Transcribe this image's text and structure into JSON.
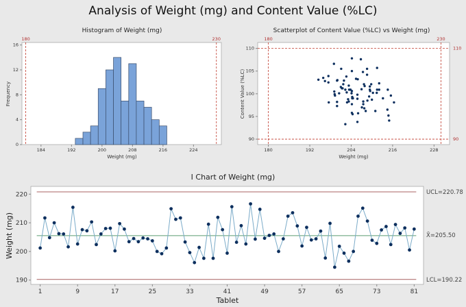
{
  "title": "Analysis of Weight (mg) and Content Value (%LC)",
  "colors": {
    "bar": "#7aa3d9",
    "bar_edge": "#3a4d6b",
    "point": "#0d2f5e",
    "line": "#79aac8",
    "center": "#5a9c72",
    "limit": "#a86060",
    "reference": "#c0392b"
  },
  "chart_data": [
    {
      "type": "bar",
      "title": "Histogram of Weight (mg)",
      "xlabel": "Weight (mg)",
      "ylabel": "Frequency",
      "bin_edges": [
        193,
        195,
        197,
        199,
        201,
        203,
        205,
        207,
        209,
        211,
        213,
        215,
        217
      ],
      "values": [
        1,
        2,
        3,
        9,
        12,
        14,
        7,
        13,
        7,
        6,
        4,
        3
      ],
      "xlim": [
        179,
        231.3
      ],
      "ylim": [
        0,
        16.4
      ],
      "xticks": [
        184,
        192,
        200,
        208,
        216,
        224
      ],
      "yticks": [
        0,
        4,
        8,
        12,
        16
      ],
      "reference_lines_x": [
        180,
        230
      ],
      "grid": false
    },
    {
      "type": "scatter",
      "title": "Scatterplot of Content Value (%LC) vs Weight (mg)",
      "xlabel": "Weight (mg)",
      "ylabel": "Content Value (%LC)",
      "xlim": [
        176.9,
        232.5
      ],
      "ylim": [
        88.8,
        111.3
      ],
      "xticks": [
        180,
        192,
        204,
        216,
        228
      ],
      "yticks": [
        90,
        95,
        100,
        105,
        110
      ],
      "reference_lines_x": [
        180,
        230
      ],
      "reference_lines_y": [
        90,
        110
      ],
      "grid": false,
      "points": [
        [
          194.5,
          103.1
        ],
        [
          195.9,
          103.5
        ],
        [
          196.4,
          102.8
        ],
        [
          197.4,
          102.5
        ],
        [
          197.4,
          103.9
        ],
        [
          197.5,
          98.1
        ],
        [
          199.0,
          106.6
        ],
        [
          199.1,
          100.5
        ],
        [
          199.2,
          99.9
        ],
        [
          199.3,
          99.6
        ],
        [
          199.9,
          102.9
        ],
        [
          200.0,
          103.0
        ],
        [
          199.9,
          98.2
        ],
        [
          199.9,
          97.3
        ],
        [
          200.5,
          100.1
        ],
        [
          201.1,
          105.5
        ],
        [
          201.0,
          101.5
        ],
        [
          201.3,
          101.2
        ],
        [
          201.5,
          101.2
        ],
        [
          201.7,
          102.1
        ],
        [
          201.9,
          102.9
        ],
        [
          202.3,
          100.9
        ],
        [
          202.6,
          103.8
        ],
        [
          202.7,
          100.3
        ],
        [
          202.8,
          98.1
        ],
        [
          203.1,
          98.8
        ],
        [
          203.3,
          101.8
        ],
        [
          203.4,
          100.9
        ],
        [
          203.3,
          98.3
        ],
        [
          203.8,
          100.9
        ],
        [
          204.1,
          100.1
        ],
        [
          204.3,
          99.0
        ],
        [
          202.3,
          93.3
        ],
        [
          204.2,
          107.8
        ],
        [
          204.2,
          105.0
        ],
        [
          204.2,
          100.6
        ],
        [
          204.2,
          97.7
        ],
        [
          204.3,
          99.3
        ],
        [
          204.5,
          99.0
        ],
        [
          204.2,
          95.8
        ],
        [
          204.4,
          95.5
        ],
        [
          205.4,
          103.3
        ],
        [
          205.9,
          103.2
        ],
        [
          205.8,
          99.8
        ],
        [
          205.8,
          98.9
        ],
        [
          206.0,
          95.7
        ],
        [
          205.8,
          93.8
        ],
        [
          206.8,
          107.6
        ],
        [
          207.0,
          101.0
        ],
        [
          207.4,
          104.8
        ],
        [
          207.5,
          98.3
        ],
        [
          207.5,
          97.7
        ],
        [
          207.1,
          97.0
        ],
        [
          207.7,
          102.1
        ],
        [
          207.9,
          101.7
        ],
        [
          207.8,
          96.8
        ],
        [
          208.2,
          96.2
        ],
        [
          208.6,
          105.5
        ],
        [
          208.6,
          104.2
        ],
        [
          208.7,
          98.5
        ],
        [
          209.2,
          99.4
        ],
        [
          209.4,
          101.6
        ],
        [
          209.4,
          100.9
        ],
        [
          209.5,
          100.6
        ],
        [
          209.8,
          102.1
        ],
        [
          210.0,
          98.7
        ],
        [
          210.3,
          100.2
        ],
        [
          211.0,
          96.2
        ],
        [
          211.4,
          100.2
        ],
        [
          211.5,
          105.7
        ],
        [
          211.5,
          100.9
        ],
        [
          212.1,
          100.9
        ],
        [
          212.1,
          102.3
        ],
        [
          213.2,
          99.0
        ],
        [
          214.5,
          96.5
        ],
        [
          214.6,
          100.9
        ],
        [
          214.8,
          95.2
        ],
        [
          215.0,
          94.1
        ],
        [
          215.5,
          99.6
        ],
        [
          216.4,
          98.1
        ]
      ]
    },
    {
      "type": "line",
      "title": "I Chart of Weight (mg)",
      "xlabel": "Tablet",
      "ylabel": "Weight (mg)",
      "xlim": [
        -1,
        83
      ],
      "ylim": [
        188.5,
        222.7
      ],
      "xticks": [
        1,
        9,
        17,
        25,
        33,
        41,
        49,
        57,
        65,
        73,
        81
      ],
      "yticks": [
        190,
        200,
        210,
        220
      ],
      "ucl": 220.78,
      "center": 205.5,
      "lcl": 190.22,
      "ucl_label": "UCL=220.78",
      "center_label": "X̄=205.50",
      "lcl_label": "LCL=190.22",
      "grid": false,
      "values": [
        201.2,
        211.7,
        204.8,
        210.0,
        206.2,
        206.1,
        201.6,
        215.4,
        202.6,
        207.6,
        207.2,
        210.3,
        202.4,
        206.1,
        208.0,
        208.1,
        200.2,
        209.7,
        207.8,
        203.4,
        204.5,
        203.4,
        204.7,
        204.4,
        203.7,
        200.0,
        199.2,
        201.2,
        214.9,
        211.2,
        211.7,
        203.3,
        199.6,
        196.1,
        201.4,
        197.6,
        209.5,
        197.6,
        211.9,
        207.6,
        199.4,
        215.6,
        203.2,
        209.0,
        202.6,
        216.6,
        204.3,
        214.7,
        204.6,
        205.6,
        206.1,
        200.0,
        204.4,
        212.3,
        213.5,
        208.9,
        201.9,
        208.4,
        204.0,
        204.4,
        207.1,
        197.7,
        209.8,
        194.5,
        201.8,
        199.4,
        196.6,
        200.0,
        212.3,
        215.1,
        210.6,
        203.9,
        202.8,
        207.5,
        208.7,
        202.4,
        209.4,
        206.3,
        208.2,
        200.5,
        207.8
      ]
    }
  ]
}
